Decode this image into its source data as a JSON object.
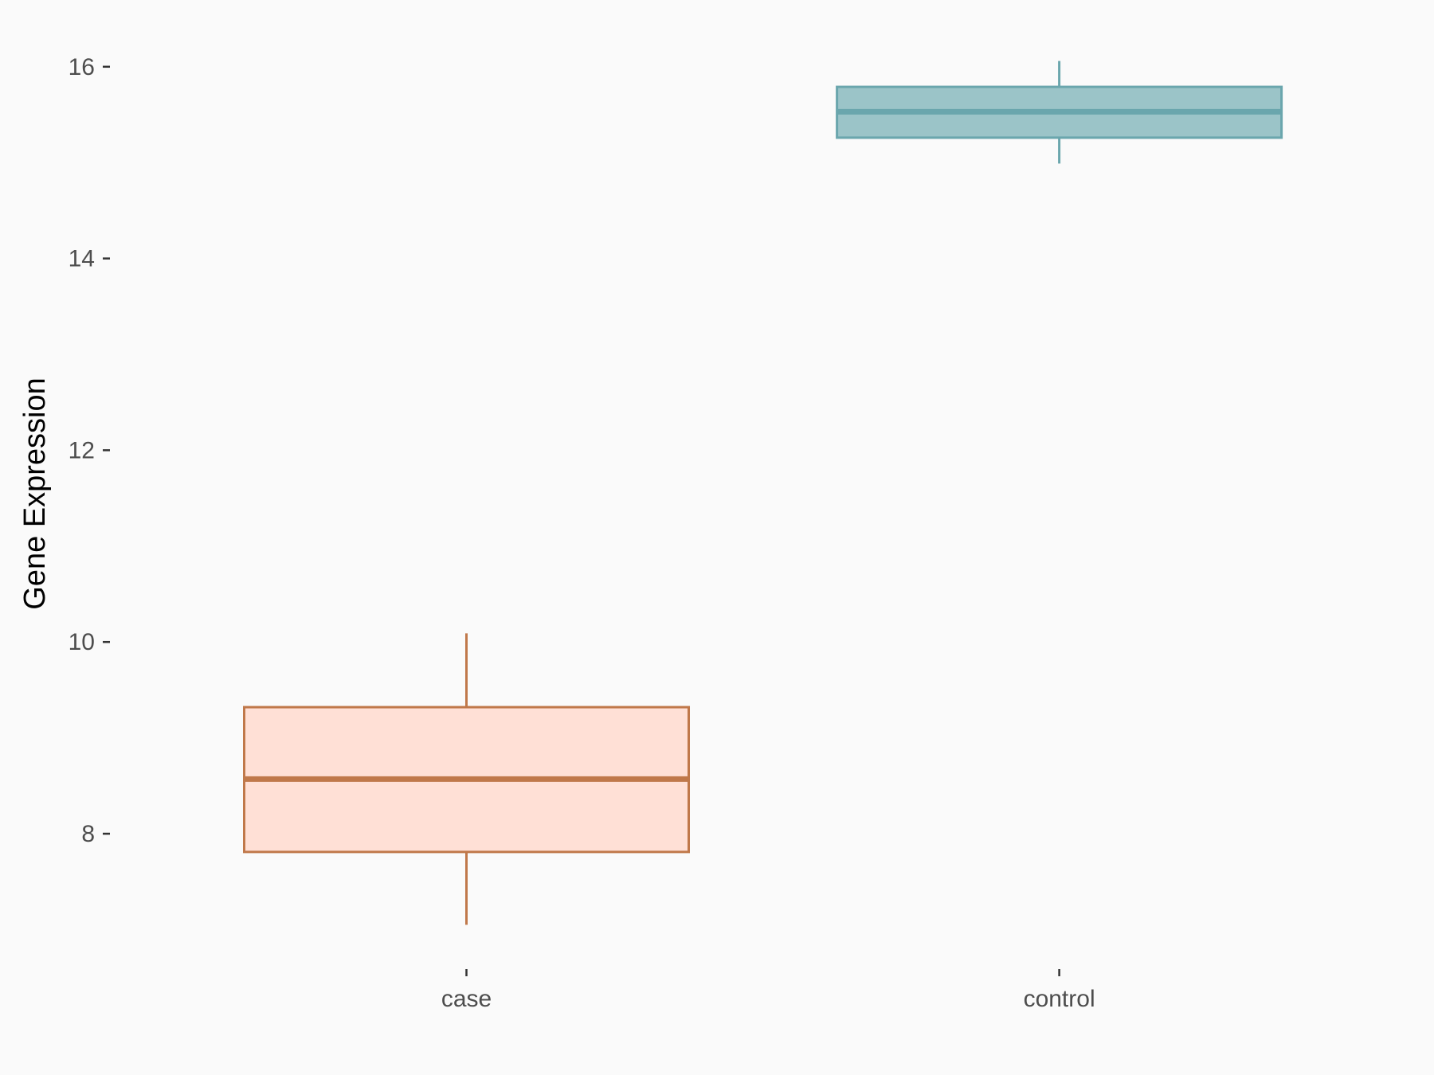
{
  "chart_data": {
    "type": "box",
    "title": "",
    "xlabel": "",
    "ylabel": "Gene Expression",
    "ylim": [
      6.7,
      16.4
    ],
    "yticks": [
      8,
      10,
      12,
      14,
      16
    ],
    "grid": false,
    "legend": "none",
    "categories": [
      "case",
      "control"
    ],
    "boxes": [
      {
        "category": "case",
        "whisker_low": 7.05,
        "q1": 7.81,
        "median": 8.57,
        "q3": 9.32,
        "whisker_high": 10.09,
        "fill": "#ffe0d6",
        "stroke": "#c0784a"
      },
      {
        "category": "control",
        "whisker_low": 14.99,
        "q1": 15.26,
        "median": 15.53,
        "q3": 15.79,
        "whisker_high": 16.06,
        "fill": "#9bc4c8",
        "stroke": "#6aa6ad"
      }
    ]
  }
}
